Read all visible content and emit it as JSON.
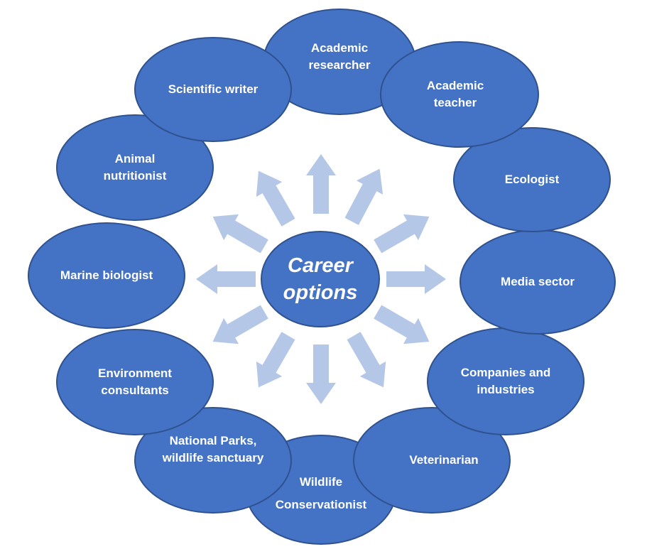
{
  "center": {
    "line1": "Career",
    "line2": "options"
  },
  "careers": [
    {
      "id": "academic-researcher",
      "lines": [
        "Academic",
        "researcher"
      ]
    },
    {
      "id": "academic-teacher",
      "lines": [
        "Academic",
        "teacher"
      ]
    },
    {
      "id": "ecologist",
      "lines": [
        "Ecologist"
      ]
    },
    {
      "id": "media-sector",
      "lines": [
        "Media sector"
      ]
    },
    {
      "id": "companies-and-industries",
      "lines": [
        "Companies and",
        "industries"
      ]
    },
    {
      "id": "veterinarian",
      "lines": [
        "Veterinarian"
      ]
    },
    {
      "id": "wildlife-conservationist",
      "lines": [
        "Wildlife",
        "Conservationist"
      ]
    },
    {
      "id": "national-parks",
      "lines": [
        "National Parks,",
        "wildlife sanctuary"
      ]
    },
    {
      "id": "environment-consultants",
      "lines": [
        "Environment",
        "consultants"
      ]
    },
    {
      "id": "marine-biologist",
      "lines": [
        "Marine biologist"
      ]
    },
    {
      "id": "animal-nutritionist",
      "lines": [
        "Animal",
        "nutritionist"
      ]
    },
    {
      "id": "scientific-writer",
      "lines": [
        "Scientific writer"
      ]
    }
  ],
  "colors": {
    "node": "#4472c4",
    "node_border": "#2f528f",
    "arrow": "#b4c7e7",
    "text": "#ffffff"
  }
}
